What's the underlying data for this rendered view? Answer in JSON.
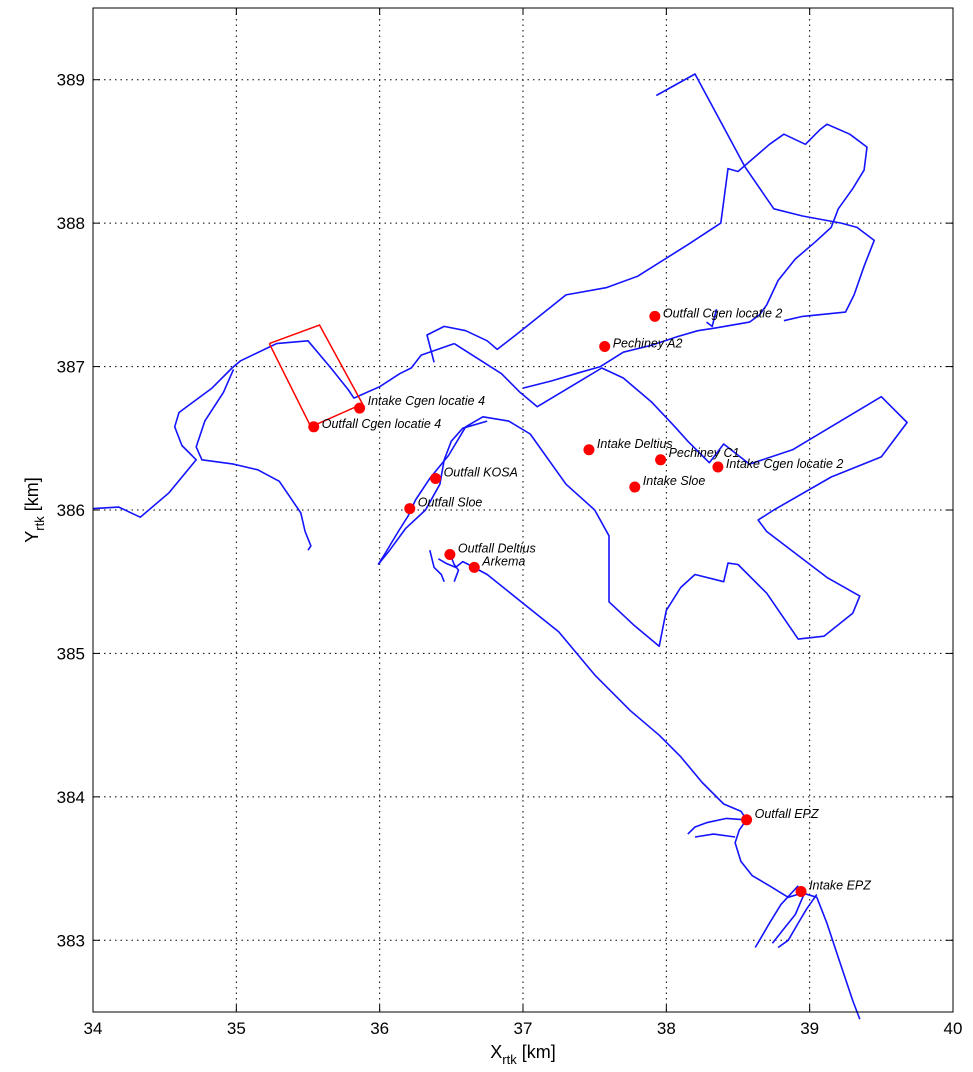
{
  "chart_data": {
    "type": "scatter",
    "title": "",
    "xlabel": "X",
    "xlabel_sub": "rtk",
    "ylabel": "Y",
    "ylabel_sub": "rtk",
    "unit": "[km]",
    "xlim": [
      34,
      40
    ],
    "ylim": [
      382.5,
      389.5
    ],
    "xticks": [
      34,
      35,
      36,
      37,
      38,
      39,
      40
    ],
    "yticks": [
      383,
      384,
      385,
      386,
      387,
      388,
      389
    ],
    "grid": true,
    "colors": {
      "outline": "#1414ff",
      "area": "#ff0000",
      "points": "#ff0000"
    },
    "area_polygon": [
      [
        35.23,
        387.16
      ],
      [
        35.58,
        387.29
      ],
      [
        35.88,
        386.74
      ],
      [
        35.52,
        386.58
      ],
      [
        35.23,
        387.16
      ]
    ],
    "outlines": [
      [
        [
          34.0,
          386.01
        ],
        [
          34.18,
          386.02
        ],
        [
          34.33,
          385.95
        ],
        [
          34.53,
          386.12
        ],
        [
          34.72,
          386.35
        ],
        [
          34.62,
          386.45
        ],
        [
          34.57,
          386.58
        ],
        [
          34.6,
          386.68
        ],
        [
          34.83,
          386.85
        ],
        [
          34.97,
          386.99
        ],
        [
          35.03,
          387.04
        ],
        [
          35.28,
          387.16
        ]
      ],
      [
        [
          35.28,
          387.16
        ],
        [
          35.5,
          387.18
        ],
        [
          35.66,
          386.99
        ],
        [
          35.78,
          386.84
        ],
        [
          35.82,
          386.78
        ],
        [
          36.0,
          386.86
        ],
        [
          36.14,
          386.95
        ],
        [
          36.22,
          386.99
        ],
        [
          36.29,
          387.08
        ],
        [
          36.52,
          387.16
        ]
      ],
      [
        [
          34.98,
          386.98
        ],
        [
          34.91,
          386.82
        ],
        [
          34.78,
          386.62
        ],
        [
          34.72,
          386.44
        ],
        [
          34.76,
          386.35
        ],
        [
          34.98,
          386.32
        ],
        [
          35.15,
          386.28
        ],
        [
          35.3,
          386.2
        ],
        [
          35.45,
          385.98
        ],
        [
          35.48,
          385.85
        ],
        [
          35.52,
          385.75
        ],
        [
          35.5,
          385.72
        ]
      ],
      [
        [
          36.52,
          387.16
        ],
        [
          36.85,
          386.95
        ],
        [
          36.98,
          386.82
        ],
        [
          37.1,
          386.72
        ],
        [
          37.55,
          386.99
        ],
        [
          37.7,
          386.92
        ],
        [
          37.9,
          386.75
        ],
        [
          38.06,
          386.58
        ],
        [
          38.15,
          386.48
        ],
        [
          38.3,
          386.33
        ],
        [
          38.4,
          386.46
        ],
        [
          38.58,
          386.32
        ],
        [
          38.88,
          386.42
        ],
        [
          39.5,
          386.79
        ],
        [
          39.68,
          386.61
        ],
        [
          39.5,
          386.37
        ],
        [
          39.15,
          386.23
        ],
        [
          38.75,
          386.0
        ],
        [
          38.64,
          385.93
        ],
        [
          38.7,
          385.85
        ],
        [
          39.12,
          385.53
        ],
        [
          39.35,
          385.4
        ],
        [
          39.3,
          385.28
        ],
        [
          39.1,
          385.12
        ],
        [
          38.92,
          385.1
        ],
        [
          38.7,
          385.42
        ],
        [
          38.5,
          385.62
        ],
        [
          38.43,
          385.63
        ],
        [
          38.4,
          385.5
        ],
        [
          38.2,
          385.55
        ],
        [
          38.1,
          385.46
        ],
        [
          38.0,
          385.3
        ],
        [
          37.95,
          385.05
        ],
        [
          37.77,
          385.2
        ],
        [
          37.6,
          385.36
        ],
        [
          37.6,
          385.82
        ],
        [
          37.5,
          386.0
        ],
        [
          37.3,
          386.18
        ],
        [
          37.05,
          386.53
        ],
        [
          36.9,
          386.62
        ],
        [
          36.72,
          386.65
        ],
        [
          36.6,
          386.58
        ],
        [
          36.48,
          386.38
        ],
        [
          36.35,
          386.22
        ],
        [
          36.25,
          386.07
        ],
        [
          36.2,
          385.96
        ],
        [
          36.13,
          385.85
        ],
        [
          36.04,
          385.7
        ],
        [
          35.99,
          385.62
        ]
      ],
      [
        [
          35.99,
          385.62
        ],
        [
          36.07,
          385.72
        ],
        [
          36.18,
          385.87
        ],
        [
          36.32,
          386.0
        ],
        [
          36.42,
          386.18
        ],
        [
          36.45,
          386.35
        ],
        [
          36.5,
          386.48
        ],
        [
          36.58,
          386.57
        ],
        [
          36.75,
          386.62
        ]
      ],
      [
        [
          36.38,
          387.03
        ],
        [
          36.33,
          387.22
        ],
        [
          36.45,
          387.28
        ],
        [
          36.6,
          387.25
        ],
        [
          36.75,
          387.18
        ],
        [
          36.82,
          387.12
        ],
        [
          36.95,
          387.22
        ],
        [
          37.3,
          387.5
        ],
        [
          37.58,
          387.55
        ],
        [
          37.8,
          387.63
        ],
        [
          38.15,
          387.85
        ],
        [
          38.38,
          388.0
        ],
        [
          38.43,
          388.38
        ],
        [
          38.5,
          388.36
        ],
        [
          38.72,
          388.55
        ],
        [
          38.82,
          388.62
        ],
        [
          38.97,
          388.55
        ],
        [
          39.07,
          388.65
        ],
        [
          39.12,
          388.69
        ],
        [
          39.28,
          388.62
        ],
        [
          39.4,
          388.53
        ],
        [
          39.38,
          388.37
        ],
        [
          39.3,
          388.24
        ],
        [
          39.2,
          388.1
        ],
        [
          39.15,
          387.97
        ],
        [
          39.04,
          387.87
        ],
        [
          38.9,
          387.75
        ],
        [
          38.78,
          387.6
        ],
        [
          38.7,
          387.43
        ],
        [
          38.65,
          387.36
        ],
        [
          38.58,
          387.31
        ],
        [
          38.35,
          387.27
        ],
        [
          38.22,
          387.25
        ],
        [
          38.08,
          387.21
        ],
        [
          37.9,
          387.15
        ],
        [
          37.7,
          387.1
        ],
        [
          37.54,
          387.0
        ],
        [
          37.4,
          386.96
        ],
        [
          37.2,
          386.9
        ],
        [
          37.0,
          386.85
        ]
      ],
      [
        [
          38.35,
          387.4
        ],
        [
          38.32,
          387.28
        ],
        [
          38.28,
          387.31
        ]
      ],
      [
        [
          37.93,
          388.89
        ],
        [
          38.2,
          389.04
        ],
        [
          38.55,
          388.39
        ],
        [
          38.75,
          388.1
        ],
        [
          38.95,
          388.05
        ],
        [
          39.22,
          388.0
        ],
        [
          39.33,
          387.97
        ],
        [
          39.45,
          387.88
        ],
        [
          39.38,
          387.7
        ],
        [
          39.31,
          387.5
        ],
        [
          39.25,
          387.38
        ],
        [
          38.95,
          387.35
        ],
        [
          38.82,
          387.32
        ]
      ],
      [
        [
          36.41,
          385.66
        ],
        [
          36.46,
          385.63
        ],
        [
          36.53,
          385.6
        ],
        [
          36.58,
          385.64
        ],
        [
          36.62,
          385.62
        ],
        [
          36.75,
          385.55
        ],
        [
          37.0,
          385.35
        ],
        [
          37.25,
          385.15
        ],
        [
          37.5,
          384.85
        ],
        [
          37.75,
          384.6
        ],
        [
          37.95,
          384.43
        ],
        [
          38.1,
          384.28
        ],
        [
          38.25,
          384.1
        ],
        [
          38.4,
          383.95
        ],
        [
          38.52,
          383.9
        ],
        [
          38.56,
          383.84
        ],
        [
          38.51,
          383.77
        ],
        [
          38.48,
          383.68
        ],
        [
          38.52,
          383.55
        ],
        [
          38.6,
          383.45
        ],
        [
          38.72,
          383.38
        ],
        [
          38.85,
          383.3
        ],
        [
          38.95,
          383.33
        ],
        [
          39.05,
          383.3
        ],
        [
          39.12,
          383.12
        ],
        [
          39.2,
          382.88
        ],
        [
          39.3,
          382.58
        ],
        [
          39.35,
          382.45
        ]
      ],
      [
        [
          36.35,
          385.72
        ],
        [
          36.38,
          385.6
        ],
        [
          36.43,
          385.55
        ],
        [
          36.45,
          385.5
        ]
      ],
      [
        [
          36.48,
          385.72
        ],
        [
          36.52,
          385.62
        ],
        [
          36.55,
          385.58
        ],
        [
          36.52,
          385.5
        ]
      ],
      [
        [
          38.55,
          383.84
        ],
        [
          38.42,
          383.85
        ],
        [
          38.28,
          383.82
        ],
        [
          38.2,
          383.79
        ],
        [
          38.15,
          383.74
        ]
      ],
      [
        [
          38.48,
          383.72
        ],
        [
          38.33,
          383.74
        ],
        [
          38.2,
          383.72
        ]
      ],
      [
        [
          38.92,
          383.38
        ],
        [
          38.8,
          383.25
        ],
        [
          38.72,
          383.12
        ],
        [
          38.65,
          383.0
        ],
        [
          38.62,
          382.95
        ]
      ],
      [
        [
          38.96,
          383.32
        ],
        [
          38.9,
          383.18
        ],
        [
          38.82,
          383.08
        ],
        [
          38.74,
          382.98
        ]
      ],
      [
        [
          39.05,
          383.32
        ],
        [
          38.98,
          383.22
        ],
        [
          38.92,
          383.12
        ],
        [
          38.85,
          383.0
        ],
        [
          38.78,
          382.95
        ]
      ]
    ],
    "points": [
      {
        "name": "Outfall Cgen locatie 2",
        "x": 37.92,
        "y": 387.35,
        "dx": 8,
        "dy": 1
      },
      {
        "name": "Pechiney A2",
        "x": 37.57,
        "y": 387.14,
        "dx": 8,
        "dy": 1
      },
      {
        "name": "Intake Cgen locatie 4",
        "x": 35.86,
        "y": 386.71,
        "dx": 8,
        "dy": -3
      },
      {
        "name": "Outfall Cgen locatie 4",
        "x": 35.54,
        "y": 386.58,
        "dx": 8,
        "dy": 1
      },
      {
        "name": "Intake Deltius",
        "x": 37.46,
        "y": 386.42,
        "dx": 8,
        "dy": -2
      },
      {
        "name": "Pechiney C1",
        "x": 37.96,
        "y": 386.35,
        "dx": 8,
        "dy": -3
      },
      {
        "name": "Intake Cgen locatie 2",
        "x": 38.36,
        "y": 386.3,
        "dx": 8,
        "dy": 1
      },
      {
        "name": "Outfall KOSA",
        "x": 36.39,
        "y": 386.22,
        "dx": 8,
        "dy": -2
      },
      {
        "name": "Intake Sloe",
        "x": 37.78,
        "y": 386.16,
        "dx": 8,
        "dy": -2
      },
      {
        "name": "Outfall Sloe",
        "x": 36.21,
        "y": 386.01,
        "dx": 8,
        "dy": -2
      },
      {
        "name": "Outfall Deltius",
        "x": 36.49,
        "y": 385.69,
        "dx": 8,
        "dy": -2
      },
      {
        "name": "Arkema",
        "x": 36.66,
        "y": 385.6,
        "dx": 8,
        "dy": -2
      },
      {
        "name": "Outfall EPZ",
        "x": 38.56,
        "y": 383.84,
        "dx": 8,
        "dy": -2
      },
      {
        "name": "Intake EPZ",
        "x": 38.94,
        "y": 383.34,
        "dx": 8,
        "dy": -2
      }
    ]
  }
}
